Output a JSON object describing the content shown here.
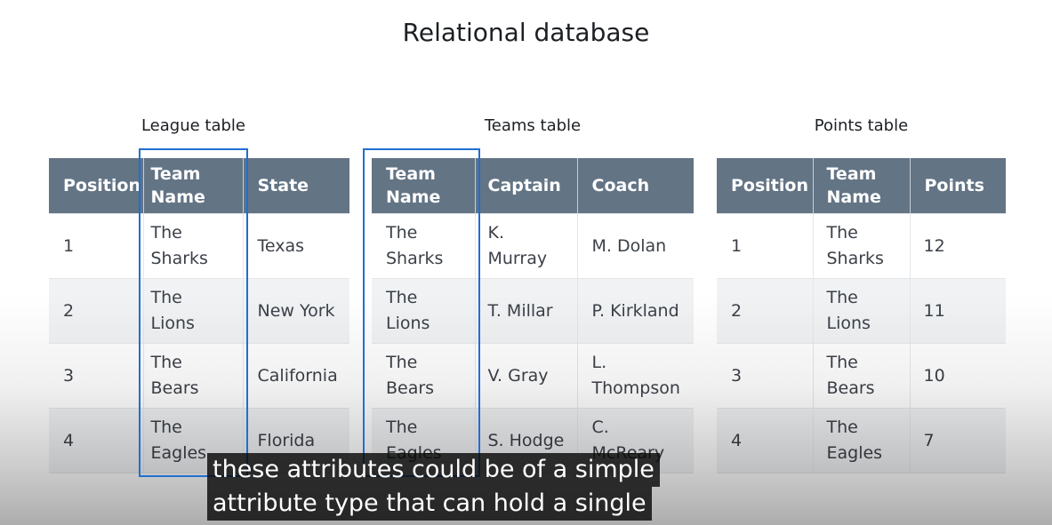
{
  "slide": {
    "title": "Relational database"
  },
  "league": {
    "caption": "League table",
    "headers": [
      "Position",
      "Team Name",
      "State"
    ],
    "rows": [
      [
        "1",
        "The Sharks",
        "Texas"
      ],
      [
        "2",
        "The Lions",
        "New York"
      ],
      [
        "3",
        "The Bears",
        "California"
      ],
      [
        "4",
        "The Eagles",
        "Florida"
      ]
    ]
  },
  "teams": {
    "caption": "Teams table",
    "headers": [
      "Team Name",
      "Captain",
      "Coach"
    ],
    "rows": [
      [
        "The Sharks",
        "K. Murray",
        "M. Dolan"
      ],
      [
        "The Lions",
        "T. Millar",
        "P. Kirkland"
      ],
      [
        "The Bears",
        "V. Gray",
        "L. Thompson"
      ],
      [
        "The Eagles",
        "S. Hodge",
        "C. McReary"
      ]
    ]
  },
  "points": {
    "caption": "Points table",
    "headers": [
      "Position",
      "Team Name",
      "Points"
    ],
    "rows": [
      [
        "1",
        "The Sharks",
        "12"
      ],
      [
        "2",
        "The Lions",
        "11"
      ],
      [
        "3",
        "The Bears",
        "10"
      ],
      [
        "4",
        "The Eagles",
        "7"
      ]
    ]
  },
  "subtitles": {
    "line1": "these attributes could be of a simple",
    "line2": "attribute type that can hold a single"
  },
  "colors": {
    "header_bg": "#637485",
    "highlight_border": "#1f6fd1",
    "row_alt_bg": "#f0f2f4"
  }
}
